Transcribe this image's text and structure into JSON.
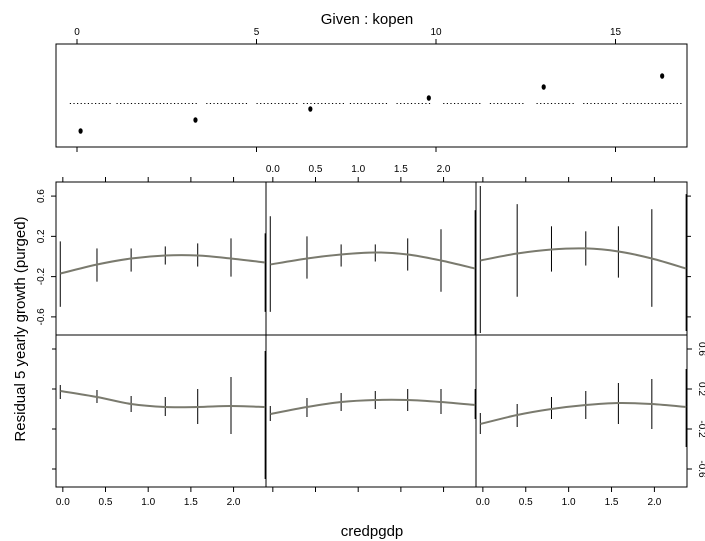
{
  "chart_data": {
    "type": "line",
    "title": "Given :  kopen",
    "xlabel": "credpgdp",
    "ylabel": "Residual 5 yearly growth (purged)",
    "given_panel": {
      "xlim": [
        -1,
        17.6
      ],
      "ticks": [
        0,
        5,
        10,
        15
      ],
      "tick_labels": [
        "0",
        "5",
        "10",
        "15"
      ],
      "points": [
        0.1,
        3.3,
        6.5,
        9.8,
        13.0,
        16.3
      ],
      "interval_ticks": [
        [
          -0.2,
          0.8
        ],
        [
          1.1,
          2.1
        ],
        [
          2.4,
          3.4
        ],
        [
          3.6,
          4.6
        ],
        [
          5.0,
          5.9
        ],
        [
          6.3,
          7.2
        ],
        [
          7.6,
          8.6
        ],
        [
          8.9,
          9.9
        ],
        [
          10.2,
          11.1
        ],
        [
          11.5,
          12.4
        ],
        [
          12.8,
          13.8
        ],
        [
          14.1,
          15.1
        ]
      ],
      "dotted_segments": [
        [
          -0.2,
          1.0
        ],
        [
          1.1,
          2.4
        ],
        [
          2.4,
          3.4
        ],
        [
          3.6,
          4.8
        ],
        [
          5.0,
          6.2
        ],
        [
          6.3,
          7.5
        ],
        [
          7.6,
          8.7
        ],
        [
          8.9,
          9.9
        ],
        [
          10.2,
          11.3
        ],
        [
          11.5,
          12.5
        ],
        [
          12.8,
          13.9
        ],
        [
          14.1,
          15.1
        ],
        [
          15.2,
          16.9
        ]
      ]
    },
    "xlim": [
      -0.08,
      2.38
    ],
    "ylim": [
      -0.78,
      0.74
    ],
    "x_ticks": [
      0.0,
      0.5,
      1.0,
      1.5,
      2.0
    ],
    "x_tick_labels": [
      "0.0",
      "0.5",
      "1.0",
      "1.5",
      "2.0"
    ],
    "y_ticks": [
      -0.6,
      -0.2,
      0.2,
      0.6
    ],
    "y_tick_labels": [
      "-0.6",
      "-0.2",
      "0.2",
      "0.6"
    ],
    "y_tick_labels_right": [
      "-0.6",
      "-0.2",
      "0.2",
      "0.6"
    ],
    "panels": [
      {
        "x": [
          -0.03,
          0.4,
          0.8,
          1.2,
          1.58,
          1.97,
          2.37
        ],
        "fit": [
          -0.17,
          -0.08,
          -0.02,
          0.01,
          0.01,
          -0.02,
          -0.06
        ],
        "lower": [
          -0.5,
          -0.25,
          -0.15,
          -0.08,
          -0.1,
          -0.2,
          -0.55
        ],
        "upper": [
          0.15,
          0.08,
          0.08,
          0.1,
          0.13,
          0.18,
          0.23
        ]
      },
      {
        "x": [
          -0.03,
          0.4,
          0.8,
          1.2,
          1.58,
          1.97,
          2.37
        ],
        "fit": [
          -0.08,
          -0.02,
          0.02,
          0.04,
          0.02,
          -0.04,
          -0.12
        ],
        "lower": [
          -0.55,
          -0.22,
          -0.1,
          -0.05,
          -0.14,
          -0.35,
          -0.78
        ],
        "upper": [
          0.4,
          0.2,
          0.12,
          0.12,
          0.18,
          0.27,
          0.46
        ]
      },
      {
        "x": [
          -0.03,
          0.4,
          0.8,
          1.2,
          1.58,
          1.97,
          2.37
        ],
        "fit": [
          -0.04,
          0.03,
          0.07,
          0.08,
          0.05,
          -0.02,
          -0.12
        ],
        "lower": [
          -0.76,
          -0.4,
          -0.15,
          -0.09,
          -0.21,
          -0.5,
          -0.74
        ],
        "upper": [
          0.7,
          0.52,
          0.3,
          0.25,
          0.3,
          0.47,
          0.62
        ]
      },
      {
        "x": [
          -0.03,
          0.4,
          0.8,
          1.2,
          1.58,
          1.97,
          2.37
        ],
        "fit": [
          0.18,
          0.12,
          0.05,
          0.02,
          0.02,
          0.03,
          0.02
        ],
        "lower": [
          0.1,
          0.06,
          -0.03,
          -0.07,
          -0.15,
          -0.25,
          -0.7
        ],
        "upper": [
          0.24,
          0.19,
          0.13,
          0.12,
          0.2,
          0.32,
          0.58
        ]
      },
      {
        "x": [
          -0.03,
          0.4,
          0.8,
          1.2,
          1.58,
          1.97,
          2.37
        ],
        "fit": [
          -0.05,
          0.02,
          0.07,
          0.09,
          0.09,
          0.07,
          0.04
        ],
        "lower": [
          -0.12,
          -0.08,
          -0.02,
          0.0,
          -0.02,
          -0.05,
          -0.1
        ],
        "upper": [
          0.03,
          0.11,
          0.16,
          0.18,
          0.2,
          0.2,
          0.2
        ]
      },
      {
        "x": [
          -0.03,
          0.4,
          0.8,
          1.2,
          1.58,
          1.97,
          2.37
        ],
        "fit": [
          -0.15,
          -0.06,
          0.0,
          0.04,
          0.06,
          0.05,
          0.02
        ],
        "lower": [
          -0.25,
          -0.18,
          -0.1,
          -0.1,
          -0.15,
          -0.2,
          -0.38
        ],
        "upper": [
          -0.04,
          0.05,
          0.12,
          0.18,
          0.26,
          0.3,
          0.4
        ]
      }
    ]
  }
}
